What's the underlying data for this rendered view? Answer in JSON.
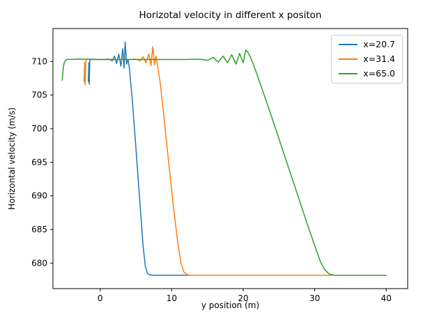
{
  "chart_data": {
    "type": "line",
    "title": "Horizotal velocity in different x positon",
    "xlabel": "y position (m)",
    "ylabel": "Horizontal velocity (m/s)",
    "xlim": [
      -6.6,
      43.0
    ],
    "ylim": [
      676.2,
      714.9
    ],
    "xticks": [
      0,
      10,
      20,
      30,
      40
    ],
    "yticks": [
      680,
      685,
      690,
      695,
      700,
      705,
      710
    ],
    "grid": false,
    "legend_position": "upper right",
    "line_width": 1.5,
    "series": [
      {
        "name": "x=20.7",
        "color": "#1f77b4",
        "points": [
          [
            -1.65,
            707.0
          ],
          [
            -1.58,
            709.8
          ],
          [
            -1.52,
            706.6
          ],
          [
            -1.45,
            710.1
          ],
          [
            -1.3,
            710.35
          ],
          [
            -0.5,
            710.3
          ],
          [
            0.5,
            710.3
          ],
          [
            1.2,
            710.35
          ],
          [
            1.7,
            710.1
          ],
          [
            2.0,
            710.8
          ],
          [
            2.3,
            709.7
          ],
          [
            2.6,
            711.1
          ],
          [
            2.9,
            709.3
          ],
          [
            3.15,
            711.9
          ],
          [
            3.35,
            709.0
          ],
          [
            3.5,
            712.9
          ],
          [
            3.7,
            709.6
          ],
          [
            3.9,
            710.3
          ],
          [
            4.1,
            708.9
          ],
          [
            4.5,
            704.2
          ],
          [
            5.0,
            697.2
          ],
          [
            5.5,
            689.8
          ],
          [
            6.0,
            682.6
          ],
          [
            6.3,
            679.6
          ],
          [
            6.6,
            678.5
          ],
          [
            6.9,
            678.25
          ],
          [
            7.5,
            678.2
          ],
          [
            40.0,
            678.2
          ]
        ]
      },
      {
        "name": "x=31.4",
        "color": "#ff7f0e",
        "points": [
          [
            -2.25,
            707.0
          ],
          [
            -2.17,
            709.8
          ],
          [
            -2.1,
            706.5
          ],
          [
            -2.02,
            710.1
          ],
          [
            -1.85,
            710.35
          ],
          [
            -1.0,
            710.3
          ],
          [
            0.0,
            710.3
          ],
          [
            2.0,
            710.3
          ],
          [
            4.0,
            710.3
          ],
          [
            5.0,
            710.35
          ],
          [
            5.6,
            710.1
          ],
          [
            6.0,
            710.7
          ],
          [
            6.4,
            709.8
          ],
          [
            6.8,
            711.1
          ],
          [
            7.1,
            709.4
          ],
          [
            7.35,
            712.2
          ],
          [
            7.6,
            709.5
          ],
          [
            7.8,
            710.8
          ],
          [
            8.0,
            709.6
          ],
          [
            8.4,
            706.8
          ],
          [
            9.0,
            700.9
          ],
          [
            9.6,
            694.8
          ],
          [
            10.2,
            688.9
          ],
          [
            10.8,
            683.4
          ],
          [
            11.3,
            680.0
          ],
          [
            11.7,
            678.7
          ],
          [
            12.1,
            678.3
          ],
          [
            12.6,
            678.2
          ],
          [
            40.0,
            678.2
          ]
        ]
      },
      {
        "name": "x=65.0",
        "color": "#2ca02c",
        "points": [
          [
            -5.3,
            707.2
          ],
          [
            -5.15,
            709.2
          ],
          [
            -5.0,
            709.9
          ],
          [
            -4.7,
            710.3
          ],
          [
            -3.0,
            710.35
          ],
          [
            0.0,
            710.3
          ],
          [
            4.0,
            710.3
          ],
          [
            8.0,
            710.3
          ],
          [
            12.0,
            710.3
          ],
          [
            14.0,
            710.35
          ],
          [
            15.0,
            710.15
          ],
          [
            15.8,
            710.6
          ],
          [
            16.5,
            709.9
          ],
          [
            17.2,
            710.8
          ],
          [
            17.8,
            709.8
          ],
          [
            18.4,
            711.0
          ],
          [
            19.0,
            709.6
          ],
          [
            19.5,
            711.2
          ],
          [
            20.0,
            709.8
          ],
          [
            20.35,
            711.7
          ],
          [
            20.7,
            711.3
          ],
          [
            21.1,
            710.4
          ],
          [
            21.8,
            708.5
          ],
          [
            23.0,
            704.8
          ],
          [
            24.0,
            701.7
          ],
          [
            25.0,
            698.5
          ],
          [
            26.0,
            695.3
          ],
          [
            27.0,
            692.1
          ],
          [
            28.0,
            688.9
          ],
          [
            29.0,
            685.7
          ],
          [
            30.0,
            682.6
          ],
          [
            30.8,
            680.2
          ],
          [
            31.4,
            679.0
          ],
          [
            32.0,
            678.4
          ],
          [
            32.7,
            678.2
          ],
          [
            40.0,
            678.2
          ]
        ]
      }
    ]
  }
}
